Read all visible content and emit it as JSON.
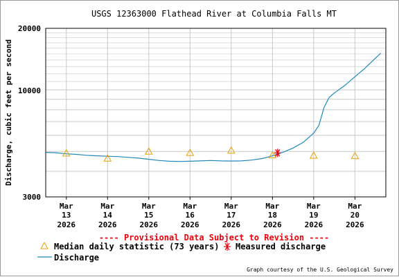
{
  "chart_data": {
    "type": "line",
    "title": "USGS 12363000 Flathead River at Columbia Falls MT",
    "ylabel": "Discharge, cubic feet per second",
    "yscale": "log",
    "ylim": [
      3000,
      20000
    ],
    "yticks": [
      "20000",
      "10000",
      "3000"
    ],
    "xlim": [
      "2026-03-12T12:00",
      "2026-03-20T18:00"
    ],
    "grid": true,
    "x_ticks": [
      {
        "date": "2026-03-13",
        "line1": "Mar",
        "line2": "13",
        "line3": "2026"
      },
      {
        "date": "2026-03-14",
        "line1": "Mar",
        "line2": "14",
        "line3": "2026"
      },
      {
        "date": "2026-03-15",
        "line1": "Mar",
        "line2": "15",
        "line3": "2026"
      },
      {
        "date": "2026-03-16",
        "line1": "Mar",
        "line2": "16",
        "line3": "2026"
      },
      {
        "date": "2026-03-17",
        "line1": "Mar",
        "line2": "17",
        "line3": "2026"
      },
      {
        "date": "2026-03-18",
        "line1": "Mar",
        "line2": "18",
        "line3": "2026"
      },
      {
        "date": "2026-03-19",
        "line1": "Mar",
        "line2": "19",
        "line3": "2026"
      },
      {
        "date": "2026-03-20",
        "line1": "Mar",
        "line2": "20",
        "line3": "2026"
      }
    ],
    "series": [
      {
        "name": "Discharge",
        "color": "#1f88b8",
        "points": [
          [
            "2026-03-12T12:00",
            4950
          ],
          [
            "2026-03-12T18:00",
            4930
          ],
          [
            "2026-03-13T00:00",
            4870
          ],
          [
            "2026-03-13T06:00",
            4840
          ],
          [
            "2026-03-13T12:00",
            4790
          ],
          [
            "2026-03-13T18:00",
            4760
          ],
          [
            "2026-03-14T00:00",
            4740
          ],
          [
            "2026-03-14T06:00",
            4720
          ],
          [
            "2026-03-14T12:00",
            4680
          ],
          [
            "2026-03-14T18:00",
            4640
          ],
          [
            "2026-03-15T00:00",
            4580
          ],
          [
            "2026-03-15T06:00",
            4520
          ],
          [
            "2026-03-15T12:00",
            4480
          ],
          [
            "2026-03-15T18:00",
            4470
          ],
          [
            "2026-03-16T00:00",
            4480
          ],
          [
            "2026-03-16T06:00",
            4500
          ],
          [
            "2026-03-16T12:00",
            4520
          ],
          [
            "2026-03-16T18:00",
            4500
          ],
          [
            "2026-03-17T00:00",
            4490
          ],
          [
            "2026-03-17T06:00",
            4500
          ],
          [
            "2026-03-17T12:00",
            4540
          ],
          [
            "2026-03-17T18:00",
            4620
          ],
          [
            "2026-03-18T00:00",
            4760
          ],
          [
            "2026-03-18T06:00",
            4950
          ],
          [
            "2026-03-18T12:00",
            5200
          ],
          [
            "2026-03-18T18:00",
            5550
          ],
          [
            "2026-03-19T00:00",
            6150
          ],
          [
            "2026-03-19T03:00",
            6700
          ],
          [
            "2026-03-19T06:00",
            8200
          ],
          [
            "2026-03-19T09:00",
            9200
          ],
          [
            "2026-03-19T12:00",
            9650
          ],
          [
            "2026-03-19T18:00",
            10500
          ],
          [
            "2026-03-20T00:00",
            11600
          ],
          [
            "2026-03-20T06:00",
            12800
          ],
          [
            "2026-03-20T12:00",
            14300
          ],
          [
            "2026-03-20T15:00",
            15100
          ]
        ]
      },
      {
        "name": "Median daily statistic (73 years)",
        "color": "#e6a100",
        "marker": "triangle",
        "points": [
          [
            "2026-03-13",
            4900
          ],
          [
            "2026-03-14",
            4630
          ],
          [
            "2026-03-15",
            5000
          ],
          [
            "2026-03-16",
            4930
          ],
          [
            "2026-03-17",
            5060
          ],
          [
            "2026-03-18",
            4800
          ],
          [
            "2026-03-19",
            4780
          ],
          [
            "2026-03-20",
            4760
          ]
        ]
      },
      {
        "name": "Measured discharge",
        "color": "#e8000b",
        "marker": "asterisk",
        "points": [
          [
            "2026-03-18T03:00",
            4920
          ]
        ]
      }
    ],
    "notice": "---- Provisional Data Subject to Revision ----",
    "credit": "Graph courtesy of the U.S. Geological Survey",
    "legend": {
      "placement": "bottom",
      "median_label": "Median daily statistic (73 years)",
      "measured_label": "Measured discharge",
      "discharge_label": "Discharge"
    }
  }
}
